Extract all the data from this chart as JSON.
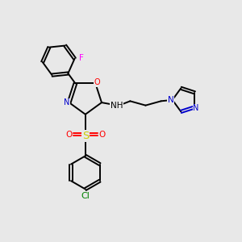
{
  "background_color": "#e8e8e8",
  "bond_color": "#000000",
  "atom_colors": {
    "N": "#0000cd",
    "O": "#ff0000",
    "S": "#cccc00",
    "F": "#ff00ff",
    "Cl": "#008000",
    "H": "#000000"
  },
  "figsize": [
    3.0,
    3.0
  ],
  "dpi": 100
}
